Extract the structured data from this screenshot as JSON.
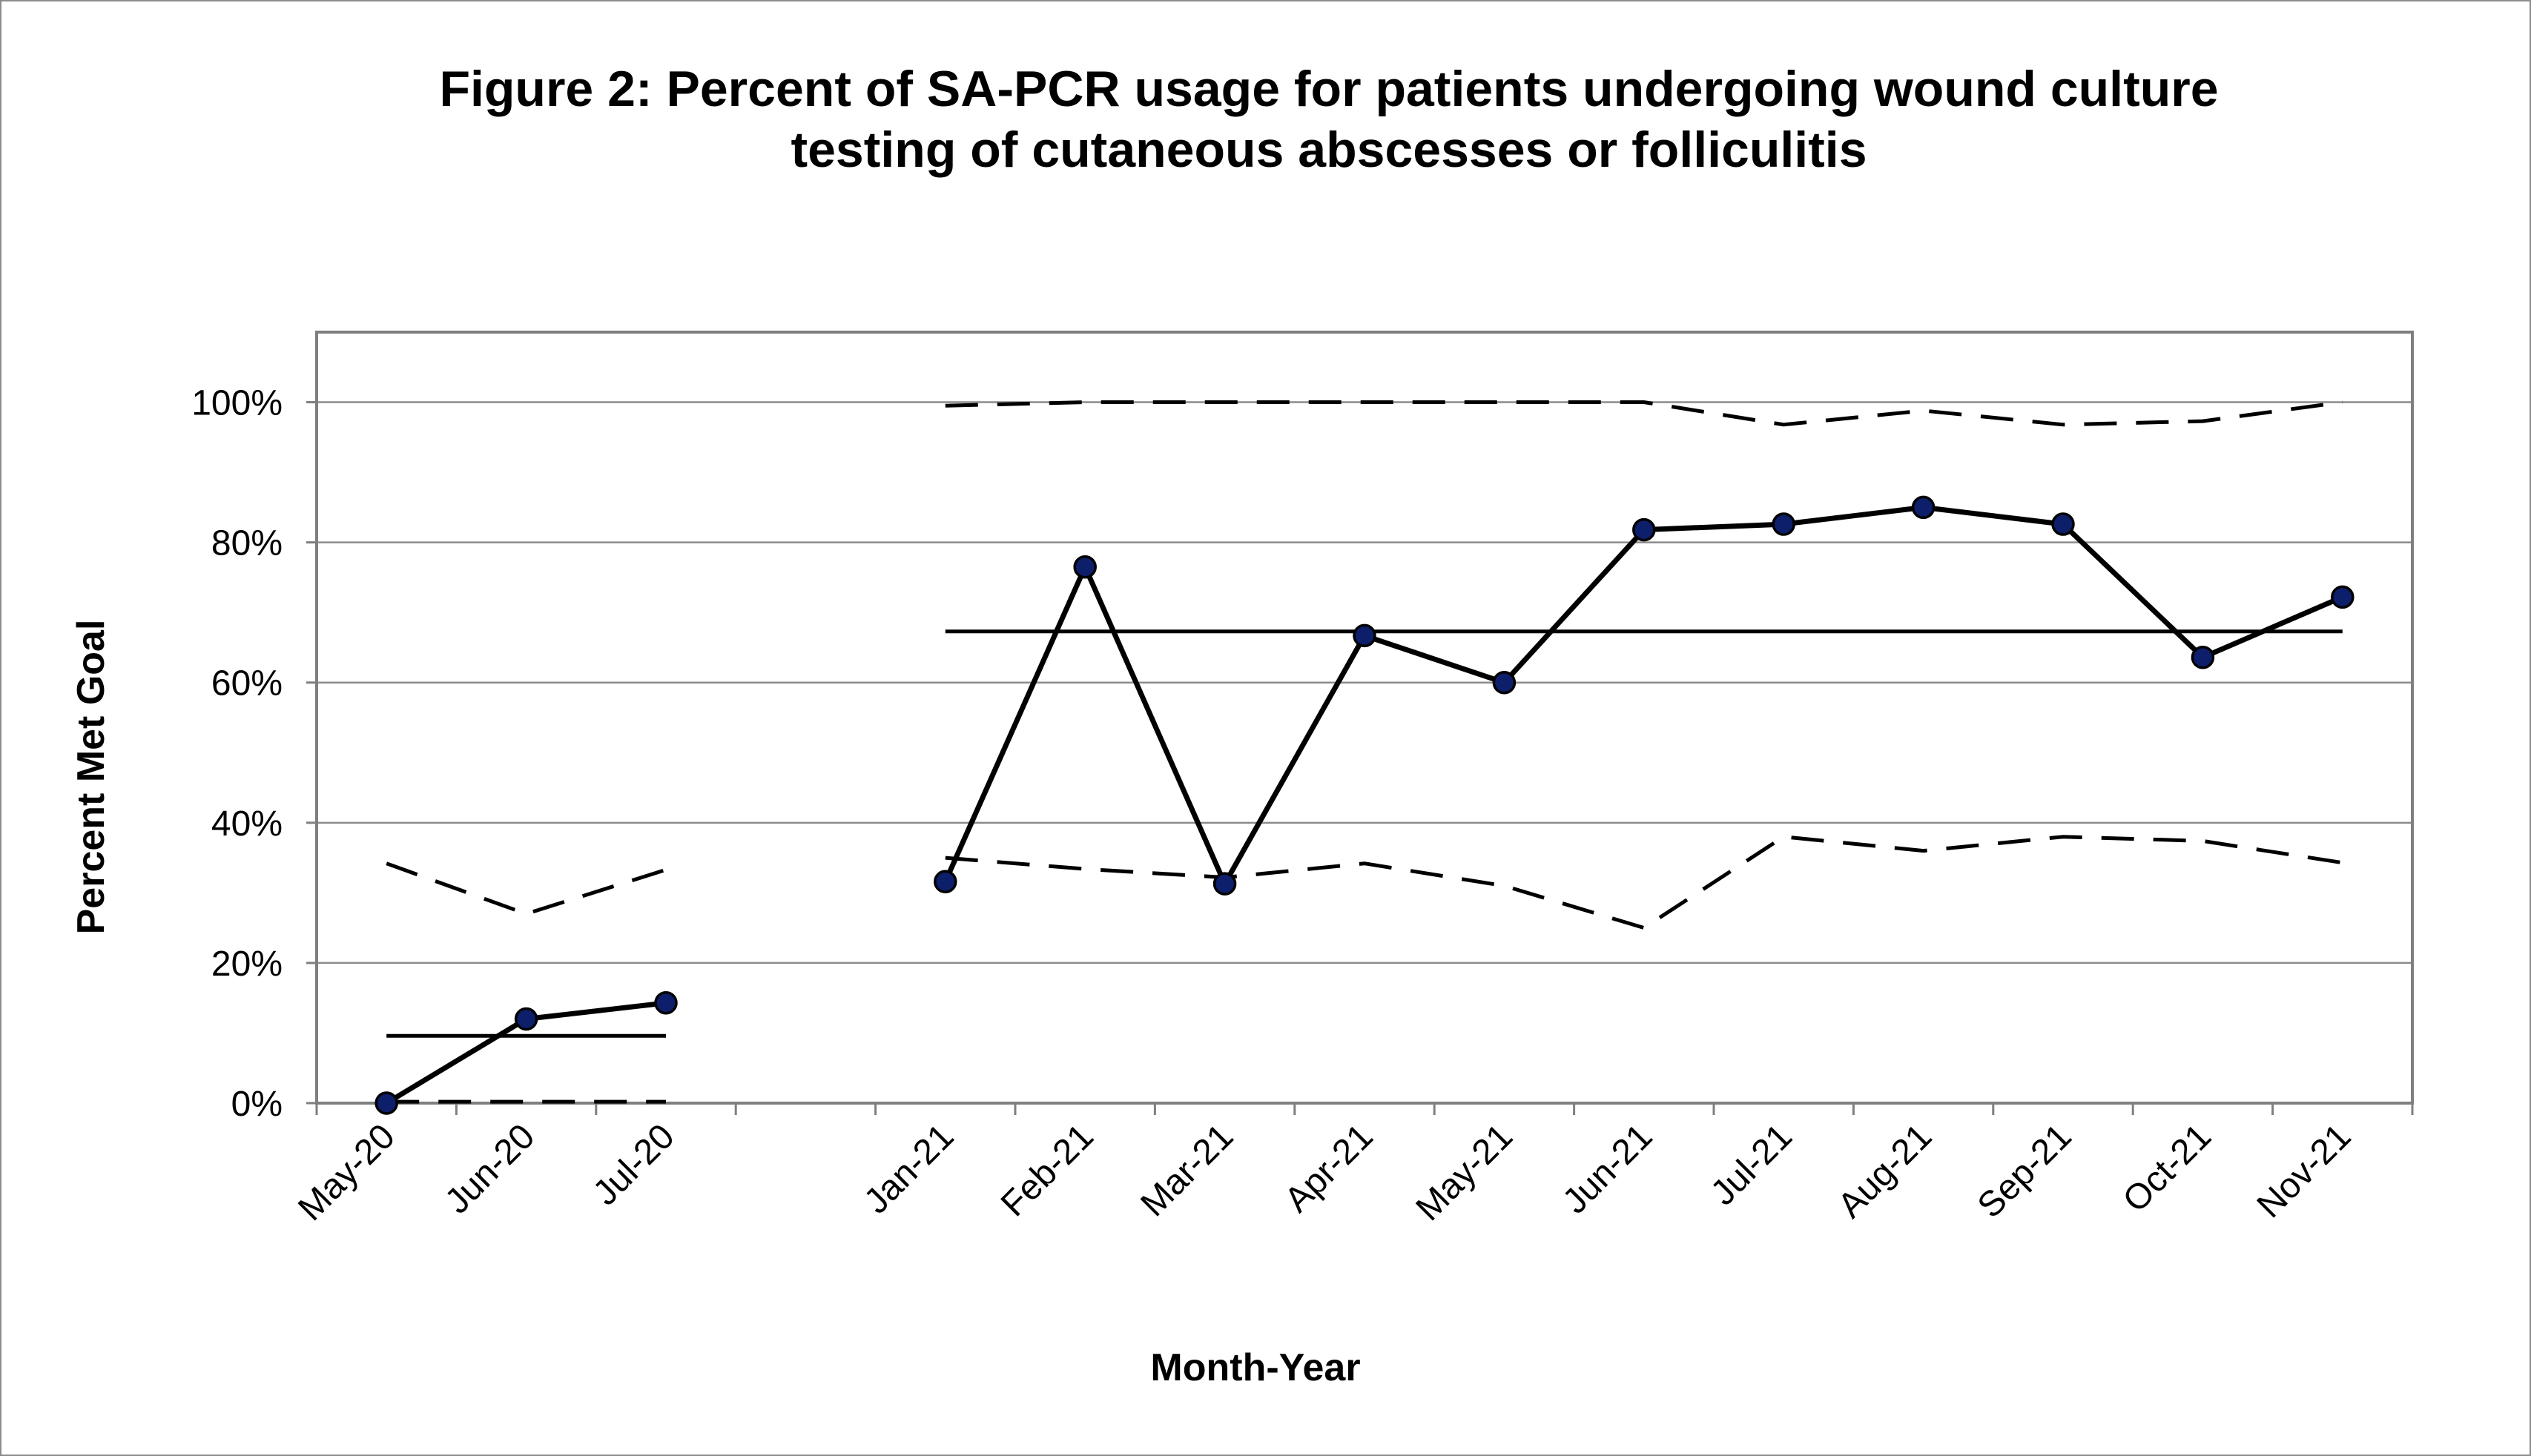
{
  "chart_data": {
    "type": "line",
    "title_lines": [
      "Figure 2: Percent of SA-PCR usage for patients undergoing wound culture",
      "testing of cutaneous abscesses or folliculitis"
    ],
    "xlabel": "Month-Year",
    "ylabel": "Percent Met Goal",
    "ylim": [
      0,
      1.1
    ],
    "y_ticks": [
      {
        "value": 0,
        "label": "0%"
      },
      {
        "value": 0.2,
        "label": "20%"
      },
      {
        "value": 0.4,
        "label": "40%"
      },
      {
        "value": 0.6,
        "label": "60%"
      },
      {
        "value": 0.8,
        "label": "80%"
      },
      {
        "value": 1.0,
        "label": "100%"
      }
    ],
    "grid": true,
    "legend": "none",
    "categories": [
      "May-20",
      "Jun-20",
      "Jul-20",
      "",
      "Jan-21",
      "Feb-21",
      "Mar-21",
      "Apr-21",
      "May-21",
      "Jun-21",
      "Jul-21",
      "Aug-21",
      "Sep-21",
      "Oct-21",
      "Nov-21"
    ],
    "series": [
      {
        "style": "solid-markers",
        "values": [
          0.0,
          0.12,
          0.143,
          null,
          0.316,
          0.765,
          0.313,
          0.667,
          0.6,
          0.818,
          0.826,
          0.85,
          0.826,
          0.636,
          0.722
        ]
      },
      {
        "style": "solid",
        "values": [
          0.096,
          0.096,
          0.096,
          null,
          0.673,
          0.673,
          0.673,
          0.673,
          0.673,
          0.673,
          0.673,
          0.673,
          0.673,
          0.673,
          0.673
        ]
      },
      {
        "style": "dashed",
        "values": [
          0.342,
          0.27,
          0.333,
          null,
          0.35,
          0.334,
          0.322,
          0.342,
          0.31,
          0.25,
          0.38,
          0.36,
          0.38,
          0.374,
          0.343
        ]
      },
      {
        "style": "dashed",
        "values": [
          0.002,
          0.002,
          0.002,
          null,
          0.995,
          1.0,
          1.0,
          1.0,
          1.0,
          1.0,
          0.968,
          0.988,
          0.968,
          0.973,
          1.0
        ]
      }
    ],
    "colors": {
      "marker_fill": "#0d1f6b",
      "line": "#000000",
      "grid": "#8c8c8c",
      "plot_border": "#7f7f7f"
    }
  }
}
